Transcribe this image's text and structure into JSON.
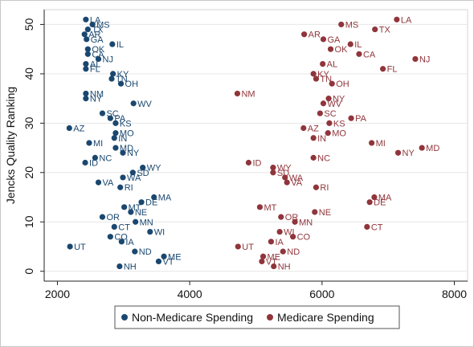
{
  "chart_data": {
    "type": "scatter",
    "ylabel": "Jencks Quality Ranking",
    "xlabel": "",
    "xlim": [
      1800,
      8200
    ],
    "ylim": [
      -2,
      53
    ],
    "x_ticks": [
      2000,
      4000,
      6000,
      8000
    ],
    "y_ticks": [
      0,
      10,
      20,
      30,
      40,
      50
    ],
    "grid": "horizontal",
    "legend_position": "bottom",
    "series": [
      {
        "name": "Non-Medicare Spending",
        "color": "#1a476f",
        "points": [
          {
            "label": "LA",
            "x": 2430,
            "y": 51
          },
          {
            "label": "MS",
            "x": 2530,
            "y": 50
          },
          {
            "label": "TX",
            "x": 2460,
            "y": 49
          },
          {
            "label": "AR",
            "x": 2410,
            "y": 48
          },
          {
            "label": "GA",
            "x": 2440,
            "y": 47
          },
          {
            "label": "IL",
            "x": 2830,
            "y": 46
          },
          {
            "label": "OK",
            "x": 2460,
            "y": 45
          },
          {
            "label": "CA",
            "x": 2460,
            "y": 44
          },
          {
            "label": "NJ",
            "x": 2620,
            "y": 43
          },
          {
            "label": "AL",
            "x": 2430,
            "y": 42
          },
          {
            "label": "FL",
            "x": 2430,
            "y": 41
          },
          {
            "label": "KY",
            "x": 2840,
            "y": 40
          },
          {
            "label": "TN",
            "x": 2820,
            "y": 39
          },
          {
            "label": "OH",
            "x": 2960,
            "y": 38
          },
          {
            "label": "NM",
            "x": 2430,
            "y": 36
          },
          {
            "label": "NY",
            "x": 2430,
            "y": 35
          },
          {
            "label": "WV",
            "x": 3150,
            "y": 34
          },
          {
            "label": "SC",
            "x": 2680,
            "y": 32
          },
          {
            "label": "PA",
            "x": 2800,
            "y": 31
          },
          {
            "label": "KS",
            "x": 2880,
            "y": 30
          },
          {
            "label": "AZ",
            "x": 2180,
            "y": 29
          },
          {
            "label": "MO",
            "x": 2880,
            "y": 28
          },
          {
            "label": "IN",
            "x": 2860,
            "y": 27
          },
          {
            "label": "MI",
            "x": 2480,
            "y": 26
          },
          {
            "label": "MD",
            "x": 2880,
            "y": 25
          },
          {
            "label": "NY",
            "x": 2990,
            "y": 24
          },
          {
            "label": "NC",
            "x": 2570,
            "y": 23
          },
          {
            "label": "ID",
            "x": 2420,
            "y": 22
          },
          {
            "label": "WY",
            "x": 3290,
            "y": 21
          },
          {
            "label": "SD",
            "x": 3140,
            "y": 20
          },
          {
            "label": "WA",
            "x": 2990,
            "y": 19
          },
          {
            "label": "VA",
            "x": 2620,
            "y": 18
          },
          {
            "label": "RI",
            "x": 2950,
            "y": 17
          },
          {
            "label": "MA",
            "x": 3460,
            "y": 15
          },
          {
            "label": "DE",
            "x": 3270,
            "y": 14
          },
          {
            "label": "MT",
            "x": 3010,
            "y": 13
          },
          {
            "label": "NE",
            "x": 3110,
            "y": 12
          },
          {
            "label": "OR",
            "x": 2680,
            "y": 11
          },
          {
            "label": "MN",
            "x": 3180,
            "y": 10
          },
          {
            "label": "CT",
            "x": 2860,
            "y": 9
          },
          {
            "label": "WI",
            "x": 3400,
            "y": 8
          },
          {
            "label": "CO",
            "x": 2800,
            "y": 7
          },
          {
            "label": "IA",
            "x": 2970,
            "y": 6
          },
          {
            "label": "UT",
            "x": 2190,
            "y": 5
          },
          {
            "label": "ND",
            "x": 3170,
            "y": 4
          },
          {
            "label": "ME",
            "x": 3610,
            "y": 3
          },
          {
            "label": "VT",
            "x": 3530,
            "y": 2
          },
          {
            "label": "NH",
            "x": 2940,
            "y": 1
          }
        ]
      },
      {
        "name": "Medicare Spending",
        "color": "#90353b",
        "points": [
          {
            "label": "LA",
            "x": 7130,
            "y": 51
          },
          {
            "label": "MS",
            "x": 6290,
            "y": 50
          },
          {
            "label": "TX",
            "x": 6800,
            "y": 49
          },
          {
            "label": "AR",
            "x": 5730,
            "y": 48
          },
          {
            "label": "GA",
            "x": 6020,
            "y": 47
          },
          {
            "label": "IL",
            "x": 6430,
            "y": 46
          },
          {
            "label": "OK",
            "x": 6130,
            "y": 45
          },
          {
            "label": "CA",
            "x": 6560,
            "y": 44
          },
          {
            "label": "NJ",
            "x": 7410,
            "y": 43
          },
          {
            "label": "AL",
            "x": 6010,
            "y": 42
          },
          {
            "label": "FL",
            "x": 6920,
            "y": 41
          },
          {
            "label": "KY",
            "x": 5870,
            "y": 40
          },
          {
            "label": "TN",
            "x": 5910,
            "y": 39
          },
          {
            "label": "OH",
            "x": 6150,
            "y": 38
          },
          {
            "label": "NM",
            "x": 4720,
            "y": 36
          },
          {
            "label": "NY",
            "x": 6100,
            "y": 35
          },
          {
            "label": "WV",
            "x": 6020,
            "y": 34
          },
          {
            "label": "SC",
            "x": 5970,
            "y": 32
          },
          {
            "label": "PA",
            "x": 6440,
            "y": 31
          },
          {
            "label": "KS",
            "x": 6110,
            "y": 30
          },
          {
            "label": "AZ",
            "x": 5720,
            "y": 29
          },
          {
            "label": "MO",
            "x": 6090,
            "y": 28
          },
          {
            "label": "IN",
            "x": 5870,
            "y": 27
          },
          {
            "label": "MI",
            "x": 6750,
            "y": 26
          },
          {
            "label": "MD",
            "x": 7510,
            "y": 25
          },
          {
            "label": "NY",
            "x": 7150,
            "y": 24
          },
          {
            "label": "NC",
            "x": 5870,
            "y": 23
          },
          {
            "label": "ID",
            "x": 4890,
            "y": 22
          },
          {
            "label": "WY",
            "x": 5260,
            "y": 21
          },
          {
            "label": "SD",
            "x": 5260,
            "y": 20
          },
          {
            "label": "WA",
            "x": 5440,
            "y": 19
          },
          {
            "label": "VA",
            "x": 5470,
            "y": 18
          },
          {
            "label": "RI",
            "x": 5910,
            "y": 17
          },
          {
            "label": "MA",
            "x": 6790,
            "y": 15
          },
          {
            "label": "DE",
            "x": 6720,
            "y": 14
          },
          {
            "label": "MT",
            "x": 5060,
            "y": 13
          },
          {
            "label": "NE",
            "x": 5890,
            "y": 12
          },
          {
            "label": "OR",
            "x": 5380,
            "y": 11
          },
          {
            "label": "MN",
            "x": 5590,
            "y": 10
          },
          {
            "label": "CT",
            "x": 6680,
            "y": 9
          },
          {
            "label": "WI",
            "x": 5360,
            "y": 8
          },
          {
            "label": "CO",
            "x": 5560,
            "y": 7
          },
          {
            "label": "IA",
            "x": 5230,
            "y": 6
          },
          {
            "label": "UT",
            "x": 4730,
            "y": 5
          },
          {
            "label": "ND",
            "x": 5410,
            "y": 4
          },
          {
            "label": "ME",
            "x": 5110,
            "y": 3
          },
          {
            "label": "VT",
            "x": 5090,
            "y": 2
          },
          {
            "label": "NH",
            "x": 5270,
            "y": 1
          }
        ]
      }
    ]
  }
}
